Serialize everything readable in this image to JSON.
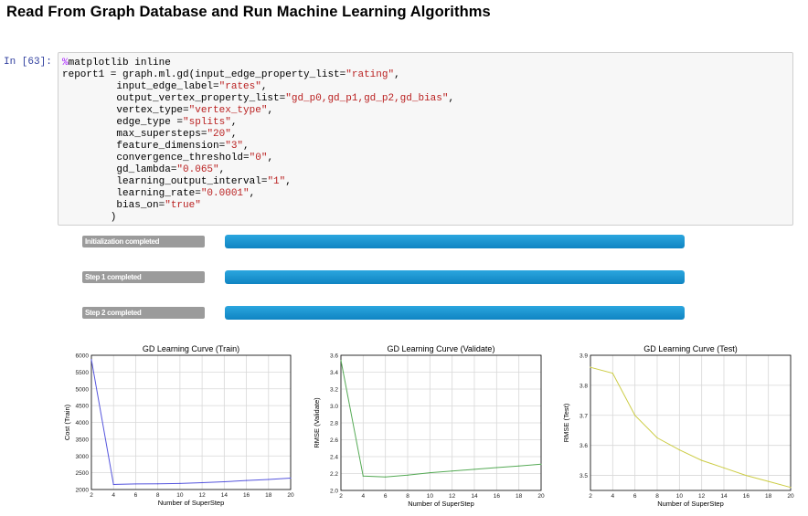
{
  "heading": "Read From Graph Database and Run Machine Learning Algorithms",
  "cell": {
    "prompt": "In [63]:",
    "code": [
      [
        [
          "%",
          "mag"
        ],
        [
          "matplotlib inline",
          ""
        ]
      ],
      [
        [
          "report1 = graph.ml.gd(input_edge_property_list=",
          ""
        ],
        [
          "\"rating\"",
          "str"
        ],
        [
          ",",
          ""
        ]
      ],
      [
        [
          "         input_edge_label=",
          ""
        ],
        [
          "\"rates\"",
          "str"
        ],
        [
          ",",
          ""
        ]
      ],
      [
        [
          "         output_vertex_property_list=",
          ""
        ],
        [
          "\"gd_p0,gd_p1,gd_p2,gd_bias\"",
          "str"
        ],
        [
          ",",
          ""
        ]
      ],
      [
        [
          "         vertex_type=",
          ""
        ],
        [
          "\"vertex_type\"",
          "str"
        ],
        [
          ",",
          ""
        ]
      ],
      [
        [
          "         edge_type =",
          ""
        ],
        [
          "\"splits\"",
          "str"
        ],
        [
          ",",
          ""
        ]
      ],
      [
        [
          "         max_supersteps=",
          ""
        ],
        [
          "\"20\"",
          "str"
        ],
        [
          ",",
          ""
        ]
      ],
      [
        [
          "         feature_dimension=",
          ""
        ],
        [
          "\"3\"",
          "str"
        ],
        [
          ",",
          ""
        ]
      ],
      [
        [
          "         convergence_threshold=",
          ""
        ],
        [
          "\"0\"",
          "str"
        ],
        [
          ",",
          ""
        ]
      ],
      [
        [
          "         gd_lambda=",
          ""
        ],
        [
          "\"0.065\"",
          "str"
        ],
        [
          ",",
          ""
        ]
      ],
      [
        [
          "         learning_output_interval=",
          ""
        ],
        [
          "\"1\"",
          "str"
        ],
        [
          ",",
          ""
        ]
      ],
      [
        [
          "         learning_rate=",
          ""
        ],
        [
          "\"0.0001\"",
          "str"
        ],
        [
          ",",
          ""
        ]
      ],
      [
        [
          "         bias_on=",
          ""
        ],
        [
          "\"true\"",
          "str"
        ]
      ],
      [
        [
          "        )",
          ""
        ]
      ]
    ]
  },
  "progress": [
    {
      "label": "Initialization completed",
      "value": 1.0
    },
    {
      "label": "Step 1 completed",
      "value": 1.0
    },
    {
      "label": "Step 2 completed",
      "value": 1.0
    }
  ],
  "colors": {
    "bar": "#1a8fd0",
    "train": "#5555dd",
    "validate": "#55aa55",
    "test": "#cccc44"
  },
  "chart_data": [
    {
      "type": "line",
      "title": "GD Learning Curve  (Train)",
      "xlabel": "Number of SuperStep",
      "ylabel": "Cost (Train)",
      "xlim": [
        2,
        20
      ],
      "ylim": [
        2000,
        6000
      ],
      "xticks": [
        "2",
        "4",
        "6",
        "8",
        "10",
        "12",
        "14",
        "16",
        "18",
        "20"
      ],
      "yticks": [
        "2000",
        "2500",
        "3000",
        "3500",
        "4000",
        "4500",
        "5000",
        "5500",
        "6000"
      ],
      "grid": true,
      "color": "#5555dd",
      "x": [
        2,
        4,
        6,
        8,
        10,
        12,
        14,
        16,
        18,
        20
      ],
      "y": [
        5870,
        2150,
        2165,
        2170,
        2180,
        2205,
        2230,
        2270,
        2300,
        2340
      ]
    },
    {
      "type": "line",
      "title": "GD Learning Curve  (Validate)",
      "xlabel": "Number of SuperStep",
      "ylabel": "RMSE (Validate)",
      "xlim": [
        2,
        20
      ],
      "ylim": [
        2.0,
        3.6
      ],
      "xticks": [
        "2",
        "4",
        "6",
        "8",
        "10",
        "12",
        "14",
        "16",
        "18",
        "20"
      ],
      "yticks": [
        "2.0",
        "2.2",
        "2.4",
        "2.6",
        "2.8",
        "3.0",
        "3.2",
        "3.4",
        "3.6"
      ],
      "grid": true,
      "color": "#55aa55",
      "x": [
        2,
        4,
        6,
        8,
        10,
        12,
        14,
        16,
        18,
        20
      ],
      "y": [
        3.54,
        2.17,
        2.16,
        2.18,
        2.21,
        2.23,
        2.25,
        2.27,
        2.29,
        2.31
      ]
    },
    {
      "type": "line",
      "title": "GD Learning Curve  (Test)",
      "xlabel": "Number of SuperStep",
      "ylabel": "RMSE (Test)",
      "xlim": [
        2,
        20
      ],
      "ylim": [
        3.45,
        3.9
      ],
      "xticks": [
        "2",
        "4",
        "6",
        "8",
        "10",
        "12",
        "14",
        "16",
        "18",
        "20"
      ],
      "yticks": [
        "3.5",
        "3.6",
        "3.7",
        "3.8",
        "3.9"
      ],
      "grid": true,
      "color": "#cccc44",
      "x": [
        2,
        4,
        6,
        8,
        10,
        12,
        14,
        16,
        18,
        20
      ],
      "y": [
        3.86,
        3.84,
        3.7,
        3.625,
        3.585,
        3.55,
        3.525,
        3.5,
        3.48,
        3.46
      ]
    }
  ]
}
